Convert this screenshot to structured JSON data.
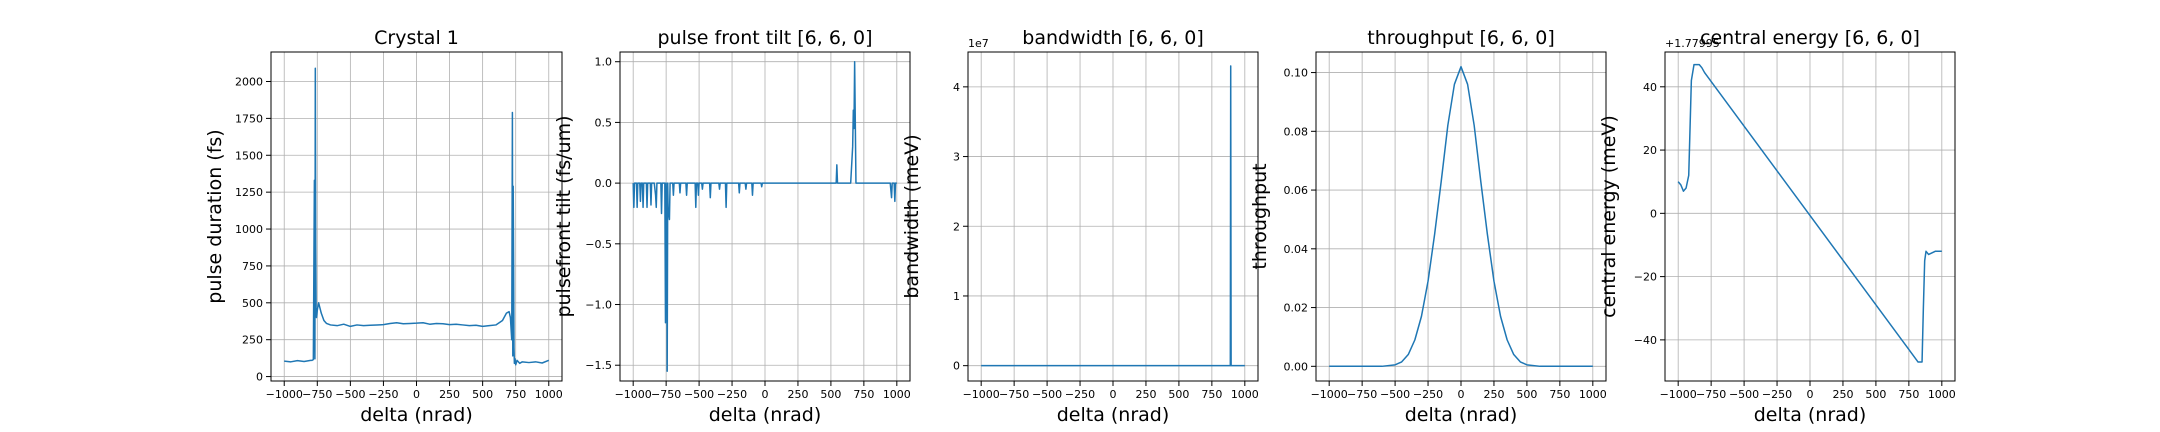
{
  "chart_data": [
    {
      "type": "line",
      "title": "Crystal 1",
      "xlabel": "delta (nrad)",
      "ylabel": "pulse duration (fs)",
      "xlim": [
        -1100,
        1100
      ],
      "ylim": [
        -30,
        2200
      ],
      "xticks": [
        -1000,
        -750,
        -500,
        -250,
        0,
        250,
        500,
        750,
        1000
      ],
      "yticks": [
        0,
        250,
        500,
        750,
        1000,
        1250,
        1500,
        1750,
        2000
      ],
      "offset_text": "",
      "grid": true,
      "series": [
        {
          "x": [
            -1000,
            -950,
            -900,
            -850,
            -800,
            -790,
            -780,
            -772,
            -768,
            -765,
            -762,
            -759,
            -756,
            -753,
            -750,
            -740,
            -720,
            -700,
            -680,
            -650,
            -600,
            -550,
            -500,
            -450,
            -400,
            -350,
            -300,
            -250,
            -200,
            -150,
            -100,
            -50,
            0,
            50,
            100,
            150,
            200,
            250,
            300,
            350,
            400,
            450,
            500,
            550,
            600,
            650,
            680,
            700,
            710,
            720,
            725,
            728,
            731,
            734,
            737,
            740,
            745,
            750,
            760,
            780,
            800,
            850,
            900,
            950,
            1000
          ],
          "y": [
            105,
            100,
            108,
            102,
            110,
            110,
            115,
            1330,
            120,
            2090,
            900,
            450,
            400,
            420,
            450,
            500,
            430,
            380,
            360,
            350,
            345,
            355,
            340,
            350,
            345,
            348,
            350,
            352,
            360,
            365,
            358,
            360,
            362,
            365,
            355,
            360,
            358,
            352,
            355,
            350,
            345,
            348,
            340,
            345,
            350,
            380,
            430,
            440,
            400,
            250,
            1790,
            140,
            1290,
            800,
            200,
            90,
            120,
            80,
            110,
            90,
            100,
            95,
            100,
            92,
            110
          ]
        }
      ]
    },
    {
      "type": "line",
      "title": "pulse front tilt [6, 6, 0]",
      "xlabel": "delta (nrad)",
      "ylabel": "pulsefront tilt (fs/um)",
      "xlim": [
        -1100,
        1100
      ],
      "ylim": [
        -1.63,
        1.08
      ],
      "xticks": [
        -1000,
        -750,
        -500,
        -250,
        0,
        250,
        500,
        750,
        1000
      ],
      "yticks": [
        -1.5,
        -1.0,
        -0.5,
        0.0,
        0.5,
        1.0
      ],
      "offset_text": "",
      "grid": true,
      "series": [
        {
          "x": [
            -1000,
            -995,
            -990,
            -975,
            -970,
            -965,
            -950,
            -945,
            -940,
            -930,
            -925,
            -920,
            -900,
            -895,
            -890,
            -870,
            -865,
            -860,
            -840,
            -830,
            -825,
            -820,
            -790,
            -785,
            -780,
            -760,
            -755,
            -750,
            -745,
            -742,
            -738,
            -735,
            -730,
            -725,
            -720,
            -700,
            -695,
            -690,
            -650,
            -645,
            -640,
            -600,
            -595,
            -590,
            -530,
            -525,
            -520,
            -510,
            -505,
            -500,
            -480,
            -475,
            -470,
            -420,
            -415,
            -410,
            -350,
            -345,
            -340,
            -300,
            -295,
            -290,
            -200,
            -195,
            -190,
            -150,
            -145,
            -140,
            -100,
            -95,
            -90,
            -30,
            -25,
            -20,
            0,
            100,
            200,
            300,
            400,
            500,
            540,
            545,
            550,
            600,
            650,
            665,
            670,
            675,
            680,
            685,
            690,
            700,
            750,
            800,
            850,
            900,
            950,
            960,
            965,
            970,
            980,
            985,
            990,
            1000
          ],
          "y": [
            0,
            -0.2,
            0,
            0,
            -0.2,
            0,
            0,
            -0.15,
            0,
            0,
            -0.2,
            0,
            0,
            -0.2,
            0,
            0,
            -0.18,
            0,
            0,
            -0.1,
            -0.2,
            0,
            0,
            -0.25,
            0,
            0,
            -1.15,
            0,
            -0.3,
            -1.55,
            0,
            -0.2,
            -0.25,
            -0.3,
            0,
            0,
            -0.1,
            0,
            0,
            -0.08,
            0,
            0,
            -0.1,
            0,
            0,
            -0.2,
            0,
            0,
            -0.1,
            0,
            0,
            -0.05,
            0,
            0,
            -0.12,
            0,
            0,
            -0.05,
            0,
            0,
            -0.2,
            0,
            0,
            -0.08,
            0,
            0,
            -0.05,
            0,
            0,
            -0.1,
            0,
            0,
            -0.03,
            0,
            0,
            0,
            0,
            0,
            0,
            0,
            0,
            0.15,
            0,
            0,
            0,
            0.3,
            0.6,
            0.45,
            1.0,
            0.5,
            0,
            0,
            0,
            0,
            0,
            0,
            0,
            -0.12,
            0,
            0,
            0,
            -0.15,
            0,
            0
          ]
        }
      ]
    },
    {
      "type": "line",
      "title": "bandwidth [6, 6, 0]",
      "xlabel": "delta (nrad)",
      "ylabel": "bandwidth (meV)",
      "xlim": [
        -1100,
        1100
      ],
      "ylim": [
        -2.2,
        45
      ],
      "xticks": [
        -1000,
        -750,
        -500,
        -250,
        0,
        250,
        500,
        750,
        1000
      ],
      "yticks": [
        0,
        10,
        20,
        30,
        40
      ],
      "ytick_labels": [
        "0",
        "1",
        "2",
        "3",
        "4"
      ],
      "offset_text": "1e7",
      "grid": true,
      "series": [
        {
          "x": [
            -1000,
            0,
            890,
            893,
            896,
            900,
            1000
          ],
          "y": [
            0,
            0,
            0,
            43,
            0,
            0,
            0
          ]
        }
      ]
    },
    {
      "type": "line",
      "title": "throughput [6, 6, 0]",
      "xlabel": "delta (nrad)",
      "ylabel": "throughput",
      "xlim": [
        -1100,
        1100
      ],
      "ylim": [
        -0.005,
        0.107
      ],
      "xticks": [
        -1000,
        -750,
        -500,
        -250,
        0,
        250,
        500,
        750,
        1000
      ],
      "yticks": [
        0.0,
        0.02,
        0.04,
        0.06,
        0.08,
        0.1
      ],
      "ytick_labels": [
        "0.00",
        "0.02",
        "0.04",
        "0.06",
        "0.08",
        "0.10"
      ],
      "offset_text": "",
      "grid": true,
      "series": [
        {
          "x": [
            -1000,
            -600,
            -500,
            -450,
            -400,
            -350,
            -300,
            -250,
            -200,
            -150,
            -100,
            -50,
            0,
            50,
            100,
            150,
            200,
            250,
            300,
            350,
            400,
            450,
            500,
            600,
            1000
          ],
          "y": [
            0,
            0,
            0.0005,
            0.0015,
            0.004,
            0.009,
            0.017,
            0.029,
            0.045,
            0.063,
            0.082,
            0.096,
            0.102,
            0.096,
            0.082,
            0.063,
            0.045,
            0.029,
            0.017,
            0.009,
            0.004,
            0.0015,
            0.0005,
            0,
            0
          ]
        }
      ]
    },
    {
      "type": "line",
      "title": "central energy [6, 6, 0]",
      "xlabel": "delta (nrad)",
      "ylabel": "central energy (meV)",
      "xlim": [
        -1100,
        1100
      ],
      "ylim": [
        -53,
        51
      ],
      "xticks": [
        -1000,
        -750,
        -500,
        -250,
        0,
        250,
        500,
        750,
        1000
      ],
      "yticks": [
        -40,
        -20,
        0,
        20,
        40
      ],
      "offset_text": "+1.77995",
      "grid": true,
      "series": [
        {
          "x": [
            -1000,
            -980,
            -960,
            -940,
            -920,
            -900,
            -880,
            -870,
            -860,
            -840,
            -820,
            -800,
            820,
            850,
            860,
            870,
            880,
            900,
            950,
            1000
          ],
          "y": [
            10,
            9,
            7,
            8,
            12,
            42,
            47,
            47,
            47,
            47,
            46,
            44.5,
            -47,
            -47,
            -30,
            -15,
            -12,
            -13,
            -12,
            -12
          ]
        }
      ]
    }
  ]
}
